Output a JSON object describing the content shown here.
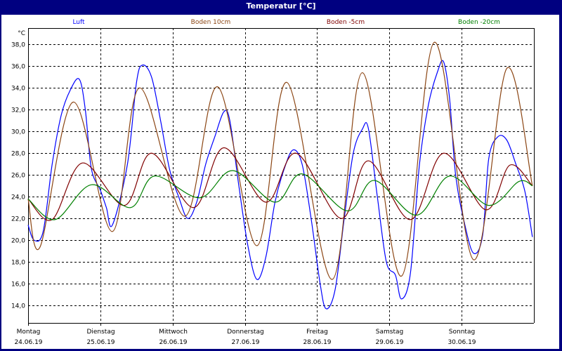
{
  "window": {
    "title": "Temperatur [°C]"
  },
  "chart_data": {
    "type": "line",
    "title": "Temperatur [°C]",
    "ylabel": "°C",
    "ylim": [
      12.4,
      39.5
    ],
    "yticks": [
      "14,0",
      "16,0",
      "18,0",
      "20,0",
      "22,0",
      "24,0",
      "26,0",
      "28,0",
      "30,0",
      "32,0",
      "34,0",
      "36,0",
      "38,0"
    ],
    "ytick_values": [
      14,
      16,
      18,
      20,
      22,
      24,
      26,
      28,
      30,
      32,
      34,
      36,
      38
    ],
    "xlim": [
      "2019-06-24T00:00",
      "2019-07-01T00:00"
    ],
    "xticks": [
      {
        "day": "Montag",
        "date": "24.06.19"
      },
      {
        "day": "Dienstag",
        "date": "25.06.19"
      },
      {
        "day": "Mittwoch",
        "date": "26.06.19"
      },
      {
        "day": "Donnerstag",
        "date": "27.06.19"
      },
      {
        "day": "Freitag",
        "date": "28.06.19"
      },
      {
        "day": "Samstag",
        "date": "29.06.19"
      },
      {
        "day": "Sonntag",
        "date": "30.06.19"
      }
    ],
    "grid": true,
    "legend_position": "top",
    "series": [
      {
        "name": "Luft",
        "color": "#0000ff",
        "points": [
          [
            "2019-06-24T00:00",
            21.4
          ],
          [
            "2019-06-24T02:00",
            20.0
          ],
          [
            "2019-06-24T05:00",
            20.8
          ],
          [
            "2019-06-24T08:00",
            27.0
          ],
          [
            "2019-06-24T11:00",
            31.5
          ],
          [
            "2019-06-24T14:00",
            33.8
          ],
          [
            "2019-06-24T17:00",
            34.8
          ],
          [
            "2019-06-24T19:00",
            32.0
          ],
          [
            "2019-06-24T21:00",
            26.6
          ],
          [
            "2019-06-25T00:00",
            24.6
          ],
          [
            "2019-06-25T02:00",
            23.0
          ],
          [
            "2019-06-25T04:00",
            21.4
          ],
          [
            "2019-06-25T09:00",
            27.0
          ],
          [
            "2019-06-25T12:00",
            34.5
          ],
          [
            "2019-06-25T14:00",
            36.1
          ],
          [
            "2019-06-25T17:00",
            35.0
          ],
          [
            "2019-06-25T20:00",
            31.0
          ],
          [
            "2019-06-25T23:00",
            26.5
          ],
          [
            "2019-06-26T02:00",
            24.0
          ],
          [
            "2019-06-26T05:00",
            22.0
          ],
          [
            "2019-06-26T08:00",
            23.5
          ],
          [
            "2019-06-26T11:00",
            27.0
          ],
          [
            "2019-06-26T14:00",
            29.5
          ],
          [
            "2019-06-26T17:00",
            31.8
          ],
          [
            "2019-06-26T19:00",
            31.0
          ],
          [
            "2019-06-26T22:00",
            25.0
          ],
          [
            "2019-06-27T01:00",
            19.5
          ],
          [
            "2019-06-27T04:00",
            16.4
          ],
          [
            "2019-06-27T07:00",
            18.5
          ],
          [
            "2019-06-27T10:00",
            23.5
          ],
          [
            "2019-06-27T13:00",
            26.5
          ],
          [
            "2019-06-27T16:00",
            28.3
          ],
          [
            "2019-06-27T19:00",
            27.0
          ],
          [
            "2019-06-27T22:00",
            22.0
          ],
          [
            "2019-06-28T01:00",
            16.0
          ],
          [
            "2019-06-28T03:00",
            13.7
          ],
          [
            "2019-06-28T06:00",
            15.5
          ],
          [
            "2019-06-28T09:00",
            22.0
          ],
          [
            "2019-06-28T12:00",
            28.0
          ],
          [
            "2019-06-28T15:00",
            30.2
          ],
          [
            "2019-06-28T17:00",
            30.3
          ],
          [
            "2019-06-28T20:00",
            24.0
          ],
          [
            "2019-06-28T23:00",
            18.0
          ],
          [
            "2019-06-29T02:00",
            16.8
          ],
          [
            "2019-06-29T04:00",
            14.6
          ],
          [
            "2019-06-29T07:00",
            17.0
          ],
          [
            "2019-06-29T10:00",
            27.0
          ],
          [
            "2019-06-29T13:00",
            32.5
          ],
          [
            "2019-06-29T16:00",
            35.5
          ],
          [
            "2019-06-29T18:00",
            36.4
          ],
          [
            "2019-06-29T20:00",
            33.0
          ],
          [
            "2019-06-29T22:00",
            26.0
          ],
          [
            "2019-06-30T01:00",
            21.5
          ],
          [
            "2019-06-30T04:00",
            18.8
          ],
          [
            "2019-06-30T07:00",
            20.5
          ],
          [
            "2019-06-30T09:00",
            27.5
          ],
          [
            "2019-06-30T12:00",
            29.5
          ],
          [
            "2019-06-30T15:00",
            29.2
          ],
          [
            "2019-06-30T18:00",
            27.0
          ],
          [
            "2019-06-30T21:00",
            24.5
          ],
          [
            "2019-06-30T23:30",
            20.3
          ]
        ]
      },
      {
        "name": "Boden 10cm",
        "color": "#8b4513",
        "points": [
          [
            "2019-06-24T00:00",
            23.8
          ],
          [
            "2019-06-24T04:00",
            19.4
          ],
          [
            "2019-06-24T15:00",
            32.7
          ],
          [
            "2019-06-25T04:00",
            20.8
          ],
          [
            "2019-06-25T13:00",
            34.0
          ],
          [
            "2019-06-26T04:00",
            22.2
          ],
          [
            "2019-06-26T15:00",
            34.1
          ],
          [
            "2019-06-27T04:00",
            19.5
          ],
          [
            "2019-06-27T14:00",
            34.5
          ],
          [
            "2019-06-28T05:00",
            16.4
          ],
          [
            "2019-06-28T15:00",
            35.4
          ],
          [
            "2019-06-29T04:00",
            16.7
          ],
          [
            "2019-06-29T15:00",
            38.2
          ],
          [
            "2019-06-30T04:00",
            18.2
          ],
          [
            "2019-06-30T15:00",
            35.8
          ],
          [
            "2019-06-30T23:30",
            25.0
          ]
        ]
      },
      {
        "name": "Boden -5cm",
        "color": "#800000",
        "points": [
          [
            "2019-06-24T00:00",
            23.8
          ],
          [
            "2019-06-24T08:00",
            21.9
          ],
          [
            "2019-06-24T18:00",
            27.1
          ],
          [
            "2019-06-25T08:00",
            23.2
          ],
          [
            "2019-06-25T17:00",
            28.0
          ],
          [
            "2019-06-26T07:00",
            23.0
          ],
          [
            "2019-06-26T17:00",
            28.5
          ],
          [
            "2019-06-27T07:00",
            23.5
          ],
          [
            "2019-06-27T17:00",
            28.0
          ],
          [
            "2019-06-28T08:00",
            22.0
          ],
          [
            "2019-06-28T17:00",
            27.3
          ],
          [
            "2019-06-29T07:00",
            21.9
          ],
          [
            "2019-06-29T18:00",
            28.0
          ],
          [
            "2019-06-30T08:00",
            22.8
          ],
          [
            "2019-06-30T16:00",
            26.9
          ],
          [
            "2019-06-30T23:30",
            25.0
          ]
        ]
      },
      {
        "name": "Boden -20cm",
        "color": "#008000",
        "points": [
          [
            "2019-06-24T00:00",
            23.8
          ],
          [
            "2019-06-24T09:00",
            21.9
          ],
          [
            "2019-06-24T21:00",
            25.1
          ],
          [
            "2019-06-25T10:00",
            23.0
          ],
          [
            "2019-06-25T18:00",
            25.9
          ],
          [
            "2019-06-26T09:00",
            23.9
          ],
          [
            "2019-06-26T20:00",
            26.4
          ],
          [
            "2019-06-27T10:00",
            23.5
          ],
          [
            "2019-06-27T19:00",
            26.1
          ],
          [
            "2019-06-28T10:00",
            22.7
          ],
          [
            "2019-06-28T19:00",
            25.5
          ],
          [
            "2019-06-29T09:00",
            22.3
          ],
          [
            "2019-06-29T20:00",
            25.9
          ],
          [
            "2019-06-30T09:00",
            23.2
          ],
          [
            "2019-06-30T19:00",
            25.4
          ],
          [
            "2019-06-30T23:30",
            25.0
          ]
        ]
      }
    ]
  }
}
